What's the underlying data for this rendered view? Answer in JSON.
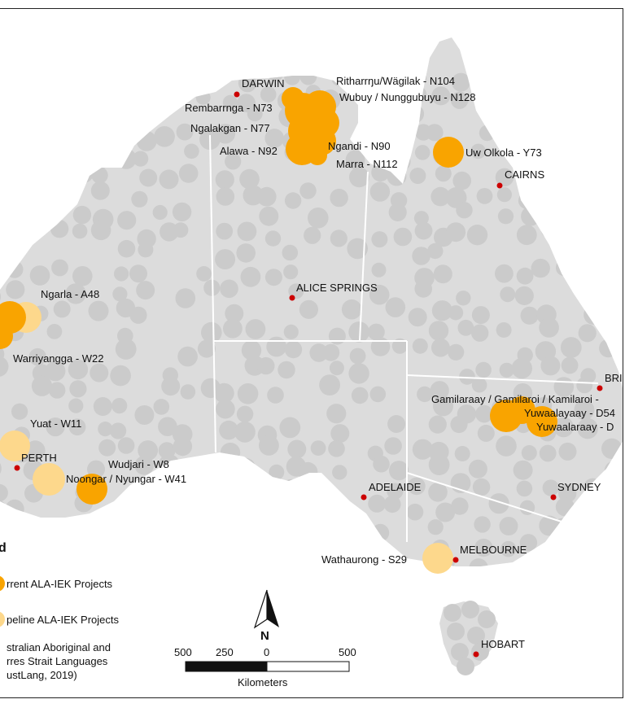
{
  "colors": {
    "land": "#dcdcdc",
    "language_dots": "#cbcbcb",
    "current_project": "#f9a400",
    "pipeline_project": "#fdd88c",
    "city_dot": "#cc0000",
    "border": "#ffffff"
  },
  "cities": [
    {
      "id": "darwin",
      "label": "DARWIN"
    },
    {
      "id": "cairns",
      "label": "CAIRNS"
    },
    {
      "id": "alice",
      "label": "ALICE SPRINGS"
    },
    {
      "id": "perth",
      "label": "PERTH"
    },
    {
      "id": "adelaide",
      "label": "ADELAIDE"
    },
    {
      "id": "sydney",
      "label": "SYDNEY"
    },
    {
      "id": "melbourne",
      "label": "MELBOURNE"
    },
    {
      "id": "hobart",
      "label": "HOBART"
    },
    {
      "id": "brisbane",
      "label": "BRI"
    }
  ],
  "projects": [
    {
      "id": "ritharrngu",
      "label": "Ritharrŋu/Wägilak - N104",
      "status": "current"
    },
    {
      "id": "wubuy",
      "label": "Wubuy / Nunggubuyu - N128",
      "status": "current"
    },
    {
      "id": "rembarrnga",
      "label": "Rembarrnga - N73",
      "status": "current"
    },
    {
      "id": "ngalakgan",
      "label": "Ngalakgan - N77",
      "status": "current"
    },
    {
      "id": "alawa",
      "label": "Alawa - N92",
      "status": "current"
    },
    {
      "id": "ngandi",
      "label": "Ngandi - N90",
      "status": "current"
    },
    {
      "id": "marra",
      "label": "Marra - N112",
      "status": "current"
    },
    {
      "id": "uwolkola",
      "label": "Uw Olkola - Y73",
      "status": "current"
    },
    {
      "id": "ngarla",
      "label": "Ngarla - A48",
      "status": "pipeline"
    },
    {
      "id": "warriyangga",
      "label": "Warriyangga - W22",
      "status": "current"
    },
    {
      "id": "yuat",
      "label": "Yuat - W11",
      "status": "pipeline"
    },
    {
      "id": "wudjari",
      "label": "Wudjari - W8",
      "status": "current"
    },
    {
      "id": "noongar",
      "label": "Noongar / Nyungar - W41",
      "status": "pipeline"
    },
    {
      "id": "gamilaraay",
      "label": "Gamilaraay / Gamilaroi / Kamilaroi -",
      "status": "current"
    },
    {
      "id": "yuwaalayaay",
      "label": "Yuwaalayaay - D54",
      "status": "current"
    },
    {
      "id": "yuwaalaraay",
      "label": "Yuwaalaraay - D",
      "status": "current"
    },
    {
      "id": "wathaurong",
      "label": "Wathaurong - S29",
      "status": "pipeline"
    }
  ],
  "legend": {
    "title": "d",
    "current": "rrent ALA-IEK Projects",
    "pipeline": "peline ALA-IEK Projects",
    "languages_line1": "stralian Aboriginal and",
    "languages_line2": "rres Strait Languages",
    "languages_line3": "ustLang, 2019)"
  },
  "north_arrow": {
    "label": "N"
  },
  "scale_bar": {
    "ticks": [
      "500",
      "250",
      "0",
      "500"
    ],
    "units": "Kilometers"
  }
}
